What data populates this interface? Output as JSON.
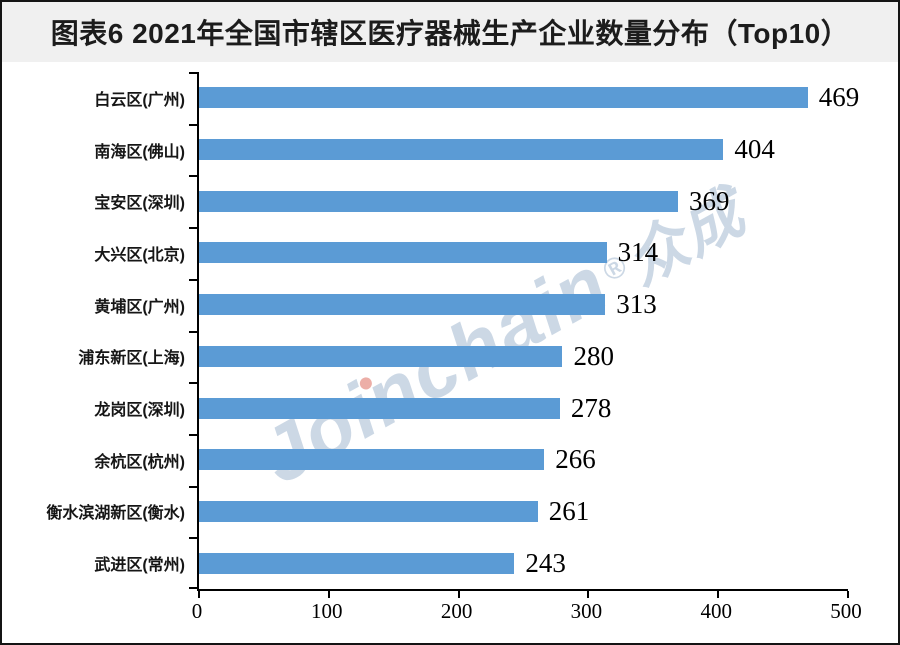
{
  "title": "图表6  2021年全国市辖区医疗器械生产企业数量分布（Top10）",
  "watermark": {
    "latin": "Joinchain",
    "dot": "®",
    "cjk": "众成"
  },
  "colors": {
    "bar": "#5B9BD5",
    "title_band_bg": "#f0f0f0",
    "axis": "#000000",
    "title_text": "#1c1c1c",
    "watermark_text": "rgba(154,178,204,0.50)",
    "watermark_i_dot": "rgba(226,130,120,0.65)"
  },
  "chart_data": {
    "type": "bar",
    "orientation": "horizontal",
    "title": "图表6  2021年全国市辖区医疗器械生产企业数量分布（Top10）",
    "categories": [
      "白云区(广州)",
      "南海区(佛山)",
      "宝安区(深圳)",
      "大兴区(北京)",
      "黄埔区(广州)",
      "浦东新区(上海)",
      "龙岗区(深圳)",
      "余杭区(杭州)",
      "衡水滨湖新区(衡水)",
      "武进区(常州)"
    ],
    "values": [
      469,
      404,
      369,
      314,
      313,
      280,
      278,
      266,
      261,
      243
    ],
    "value_labels_shown": true,
    "xlabel": "",
    "ylabel": "",
    "xlim": [
      0,
      500
    ],
    "x_ticks": [
      0,
      100,
      200,
      300,
      400,
      500
    ],
    "grid": false,
    "legend": null,
    "bar_color": "#5B9BD5"
  }
}
